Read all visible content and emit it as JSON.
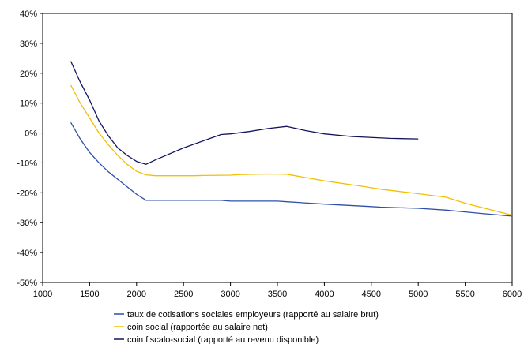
{
  "chart_data": {
    "type": "line",
    "title": "",
    "xlabel": "",
    "ylabel": "",
    "xlim": [
      1000,
      6000
    ],
    "ylim": [
      -50,
      40
    ],
    "x_ticks": [
      1000,
      1500,
      2000,
      2500,
      3000,
      3500,
      4000,
      4500,
      5000,
      5500,
      6000
    ],
    "y_ticks": [
      -50,
      -40,
      -30,
      -20,
      -10,
      0,
      10,
      20,
      30,
      40
    ],
    "y_tick_labels": [
      "-50%",
      "-40%",
      "-30%",
      "-20%",
      "-10%",
      "0%",
      "10%",
      "20%",
      "30%",
      "40%"
    ],
    "y_unit": "%",
    "grid": false,
    "zero_line": true,
    "legend_position": "bottom",
    "series": [
      {
        "name": "taux de cotisations sociales employeurs (rapporté au salaire brut)",
        "color": "#2f4fa8",
        "x": [
          1300,
          1400,
          1500,
          1600,
          1700,
          1800,
          1900,
          2000,
          2100,
          2500,
          2900,
          3000,
          3500,
          3600,
          4000,
          4500,
          4600,
          5000,
          5300,
          5500,
          5700,
          6000
        ],
        "y": [
          3.5,
          -2,
          -6.5,
          -10,
          -13,
          -15.5,
          -18,
          -20.5,
          -22.5,
          -22.5,
          -22.5,
          -22.8,
          -22.8,
          -23,
          -23.8,
          -24.6,
          -24.8,
          -25.2,
          -25.8,
          -26.4,
          -27,
          -27.8
        ]
      },
      {
        "name": "coin social (rapportée au salaire net)",
        "color": "#f2c000",
        "x": [
          1300,
          1400,
          1500,
          1600,
          1700,
          1800,
          1900,
          2000,
          2100,
          2200,
          2600,
          2700,
          3000,
          3100,
          3400,
          3600,
          4000,
          4400,
          4600,
          5000,
          5300,
          5500,
          6000
        ],
        "y": [
          16,
          10,
          5,
          0,
          -4,
          -7.5,
          -10.5,
          -12.8,
          -14,
          -14.3,
          -14.3,
          -14.2,
          -14.1,
          -13.9,
          -13.7,
          -13.8,
          -16,
          -17.8,
          -18.8,
          -20.3,
          -21.5,
          -23.5,
          -27.5
        ]
      },
      {
        "name": "coin fiscalo-social (rapporté au revenu disponible)",
        "color": "#14145e",
        "x": [
          1300,
          1400,
          1500,
          1600,
          1700,
          1800,
          1900,
          2000,
          2100,
          2200,
          2500,
          2900,
          3000,
          3200,
          3400,
          3600,
          3800,
          4000,
          4300,
          4700,
          5000
        ],
        "y": [
          24,
          17,
          11,
          4,
          -1,
          -5,
          -7.5,
          -9.5,
          -10.5,
          -9,
          -5,
          -0.5,
          -0.3,
          0.5,
          1.5,
          2.2,
          0.8,
          -0.3,
          -1.2,
          -1.8,
          -2
        ]
      }
    ]
  }
}
